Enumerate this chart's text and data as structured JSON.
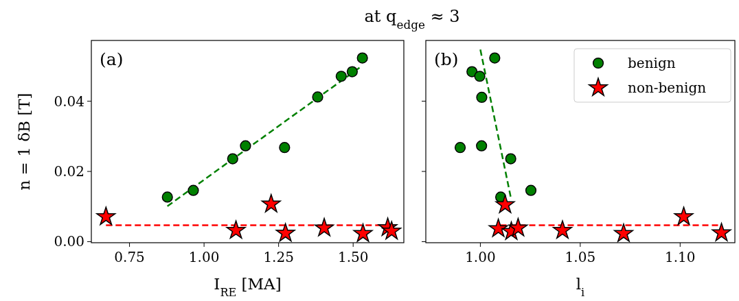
{
  "chart_data": [
    {
      "type": "scatter",
      "title": "at q$_{edge}$ ≈ 3",
      "xlabel": "I$_{RE}$ [MA]",
      "ylabel": "n = 1 δB [T]",
      "annotations": [
        "(a)"
      ],
      "xlim": [
        0.622,
        1.67
      ],
      "ylim": [
        -0.0003,
        0.0573
      ],
      "xticks": [
        {
          "value": 0.75,
          "label": "0.75"
        },
        {
          "value": 1.0,
          "label": "1.00"
        },
        {
          "value": 1.25,
          "label": "1.25"
        },
        {
          "value": 1.5,
          "label": "1.50"
        }
      ],
      "yticks": [
        {
          "value": 0,
          "label": "0.00"
        },
        {
          "value": 0.02,
          "label": "0.02"
        },
        {
          "value": 0.04,
          "label": "0.04"
        }
      ],
      "grid": false,
      "legend": false,
      "series": [
        {
          "type": "line",
          "color": "#008000",
          "line_style": "dashed",
          "marker": "none",
          "x": [
            0.877,
            1.529
          ],
          "values": [
            0.0101,
            0.05
          ]
        },
        {
          "type": "line",
          "color": "#ff0000",
          "line_style": "dashed",
          "marker": "none",
          "x": [
            0.671,
            1.628
          ],
          "values": [
            0.0047,
            0.0047
          ]
        },
        {
          "color": "#008000",
          "marker": "circle",
          "x": [
            0.877,
            0.964,
            1.096,
            1.139,
            1.27,
            1.381,
            1.46,
            1.497,
            1.531
          ],
          "values": [
            0.0127,
            0.0146,
            0.0236,
            0.0273,
            0.0268,
            0.0412,
            0.0471,
            0.0484,
            0.0523
          ]
        },
        {
          "color": "#ff0000",
          "marker": "star",
          "x": [
            0.671,
            1.107,
            1.225,
            1.273,
            1.403,
            1.533,
            1.616,
            1.629
          ],
          "values": [
            0.0071,
            0.0032,
            0.0107,
            0.0024,
            0.0039,
            0.0023,
            0.004,
            0.003
          ]
        }
      ]
    },
    {
      "type": "scatter",
      "xlabel": "l$_{i}$",
      "annotations": [
        "(b)"
      ],
      "xlim": [
        0.9727,
        1.1274
      ],
      "ylim": [
        -0.0003,
        0.0573
      ],
      "xticks": [
        {
          "value": 1.0,
          "label": "1.00"
        },
        {
          "value": 1.05,
          "label": "1.05"
        },
        {
          "value": 1.1,
          "label": "1.10"
        }
      ],
      "yticks": [
        {
          "value": 0,
          "label": null
        },
        {
          "value": 0.02,
          "label": null
        },
        {
          "value": 0.04,
          "label": null
        }
      ],
      "tick_labels": "x",
      "grid": false,
      "legend": "top right",
      "series": [
        {
          "type": "line",
          "color": "#008000",
          "line_style": "dashed",
          "marker": "none",
          "x": [
            1.0,
            1.0153
          ],
          "values": [
            0.0547,
            0.0124
          ]
        },
        {
          "type": "line",
          "color": "#ff0000",
          "line_style": "dashed",
          "marker": "none",
          "x": [
            1.01,
            1.1197
          ],
          "values": [
            0.0047,
            0.0047
          ]
        },
        {
          "name": "benign",
          "color": "#008000",
          "marker": "circle",
          "x": [
            1.0072,
            0.9958,
            0.9997,
            1.0007,
            0.9899,
            1.0006,
            1.0152,
            1.0253,
            1.0102
          ],
          "values": [
            0.0523,
            0.0484,
            0.0471,
            0.0411,
            0.0268,
            0.0273,
            0.0236,
            0.0146,
            0.0127
          ]
        },
        {
          "name": "non-benign",
          "color": "#ff0000",
          "marker": "star",
          "x": [
            1.0124,
            1.009,
            1.0155,
            1.0189,
            1.0411,
            1.0717,
            1.1018,
            1.1207
          ],
          "values": [
            0.0105,
            0.0037,
            0.0029,
            0.0039,
            0.0032,
            0.0023,
            0.0071,
            0.0025
          ]
        }
      ]
    }
  ]
}
